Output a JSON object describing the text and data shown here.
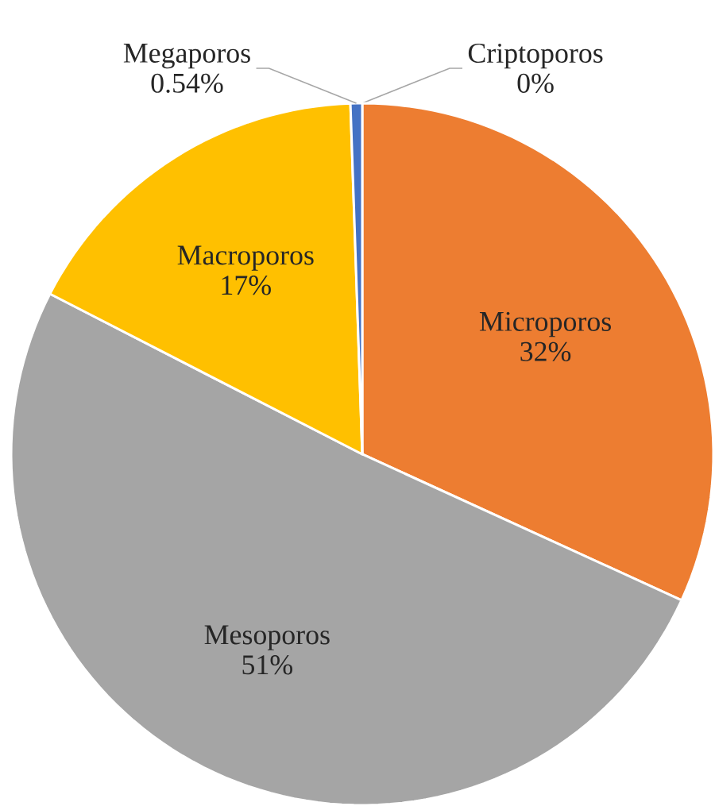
{
  "chart_data": {
    "type": "pie",
    "categories": [
      "Criptoporos",
      "Microporos",
      "Mesoporos",
      "Macroporos",
      "Megaporos"
    ],
    "values": [
      0,
      32,
      51,
      17,
      0.54
    ],
    "value_labels": [
      "0%",
      "32%",
      "51%",
      "17%",
      "0.54%"
    ],
    "colors": [
      "#5b9bd5",
      "#ed7d31",
      "#a5a5a5",
      "#ffc000",
      "#4472c4"
    ]
  }
}
